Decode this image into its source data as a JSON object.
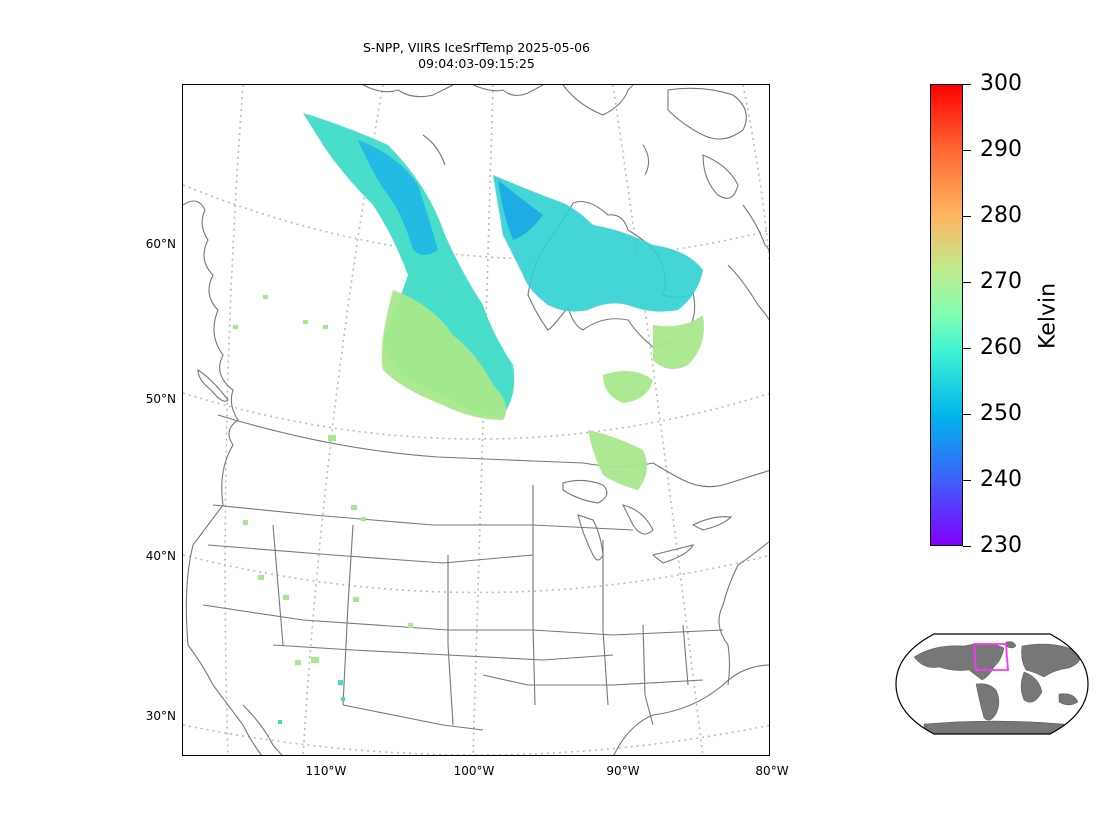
{
  "title": {
    "line1": "S-NPP, VIIRS IceSrfTemp 2025-05-06",
    "line2": "09:04:03-09:15:25"
  },
  "map": {
    "lat_labels": [
      "60°N",
      "50°N",
      "40°N",
      "30°N"
    ],
    "lon_labels": [
      "110°W",
      "100°W",
      "90°W",
      "80°W"
    ],
    "graticule_color": "#bbbbbb",
    "border_color": "#777777"
  },
  "colorbar": {
    "label": "Kelvin",
    "ticks": [
      "300",
      "290",
      "280",
      "270",
      "260",
      "250",
      "240",
      "230"
    ],
    "colormap": "rainbow",
    "min": 230,
    "max": 300
  },
  "inset": {
    "name": "world-locator-globe",
    "box_color": "#ff33ff",
    "land_color": "#777777"
  }
}
